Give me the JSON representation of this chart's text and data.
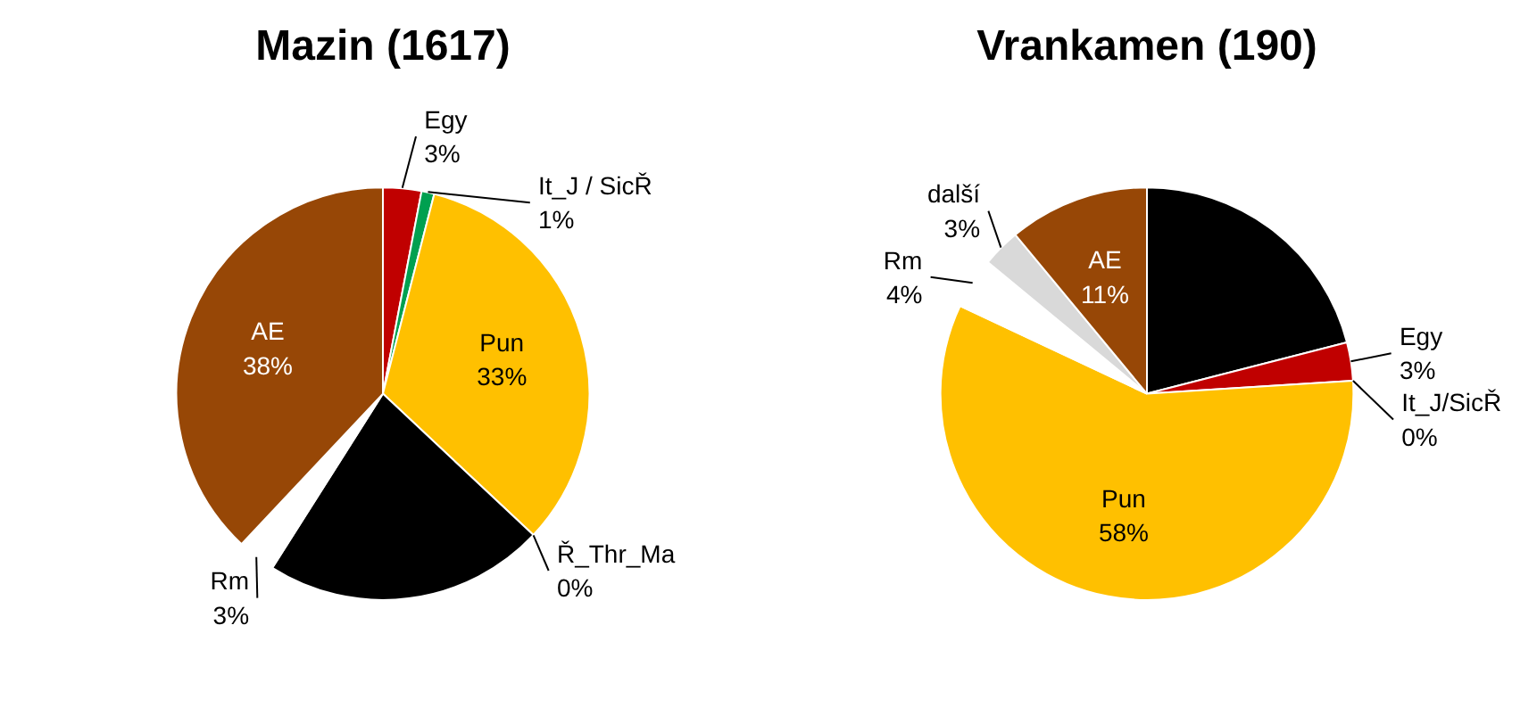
{
  "chart_data": [
    {
      "type": "pie",
      "title": "Mazin (1617)",
      "categories": [
        "Egy",
        "It_J / SicŘ",
        "Pun",
        "Ř_Thr_Ma",
        null,
        "Rm",
        "AE"
      ],
      "values": [
        3,
        1,
        33,
        0,
        22,
        3,
        38
      ],
      "value_labels": [
        "3%",
        "1%",
        "33%",
        "0%",
        null,
        "3%",
        "38%"
      ],
      "colors": [
        "#c00000",
        "#00a050",
        "#ffc000",
        "#7f7f7f",
        "#000000",
        "#ffffff",
        "#974706"
      ]
    },
    {
      "type": "pie",
      "title": "Vrankamen (190)",
      "categories": [
        null,
        "Egy",
        "It_J/SicŘ",
        "Pun",
        "Rm",
        "další",
        "AE"
      ],
      "values": [
        21,
        3,
        0,
        58,
        4,
        3,
        11
      ],
      "value_labels": [
        null,
        "3%",
        "0%",
        "58%",
        "4%",
        "3%",
        "11%"
      ],
      "colors": [
        "#000000",
        "#c00000",
        "#ffff00",
        "#ffc000",
        "#ffffff",
        "#d9d9d9",
        "#974706"
      ]
    }
  ]
}
